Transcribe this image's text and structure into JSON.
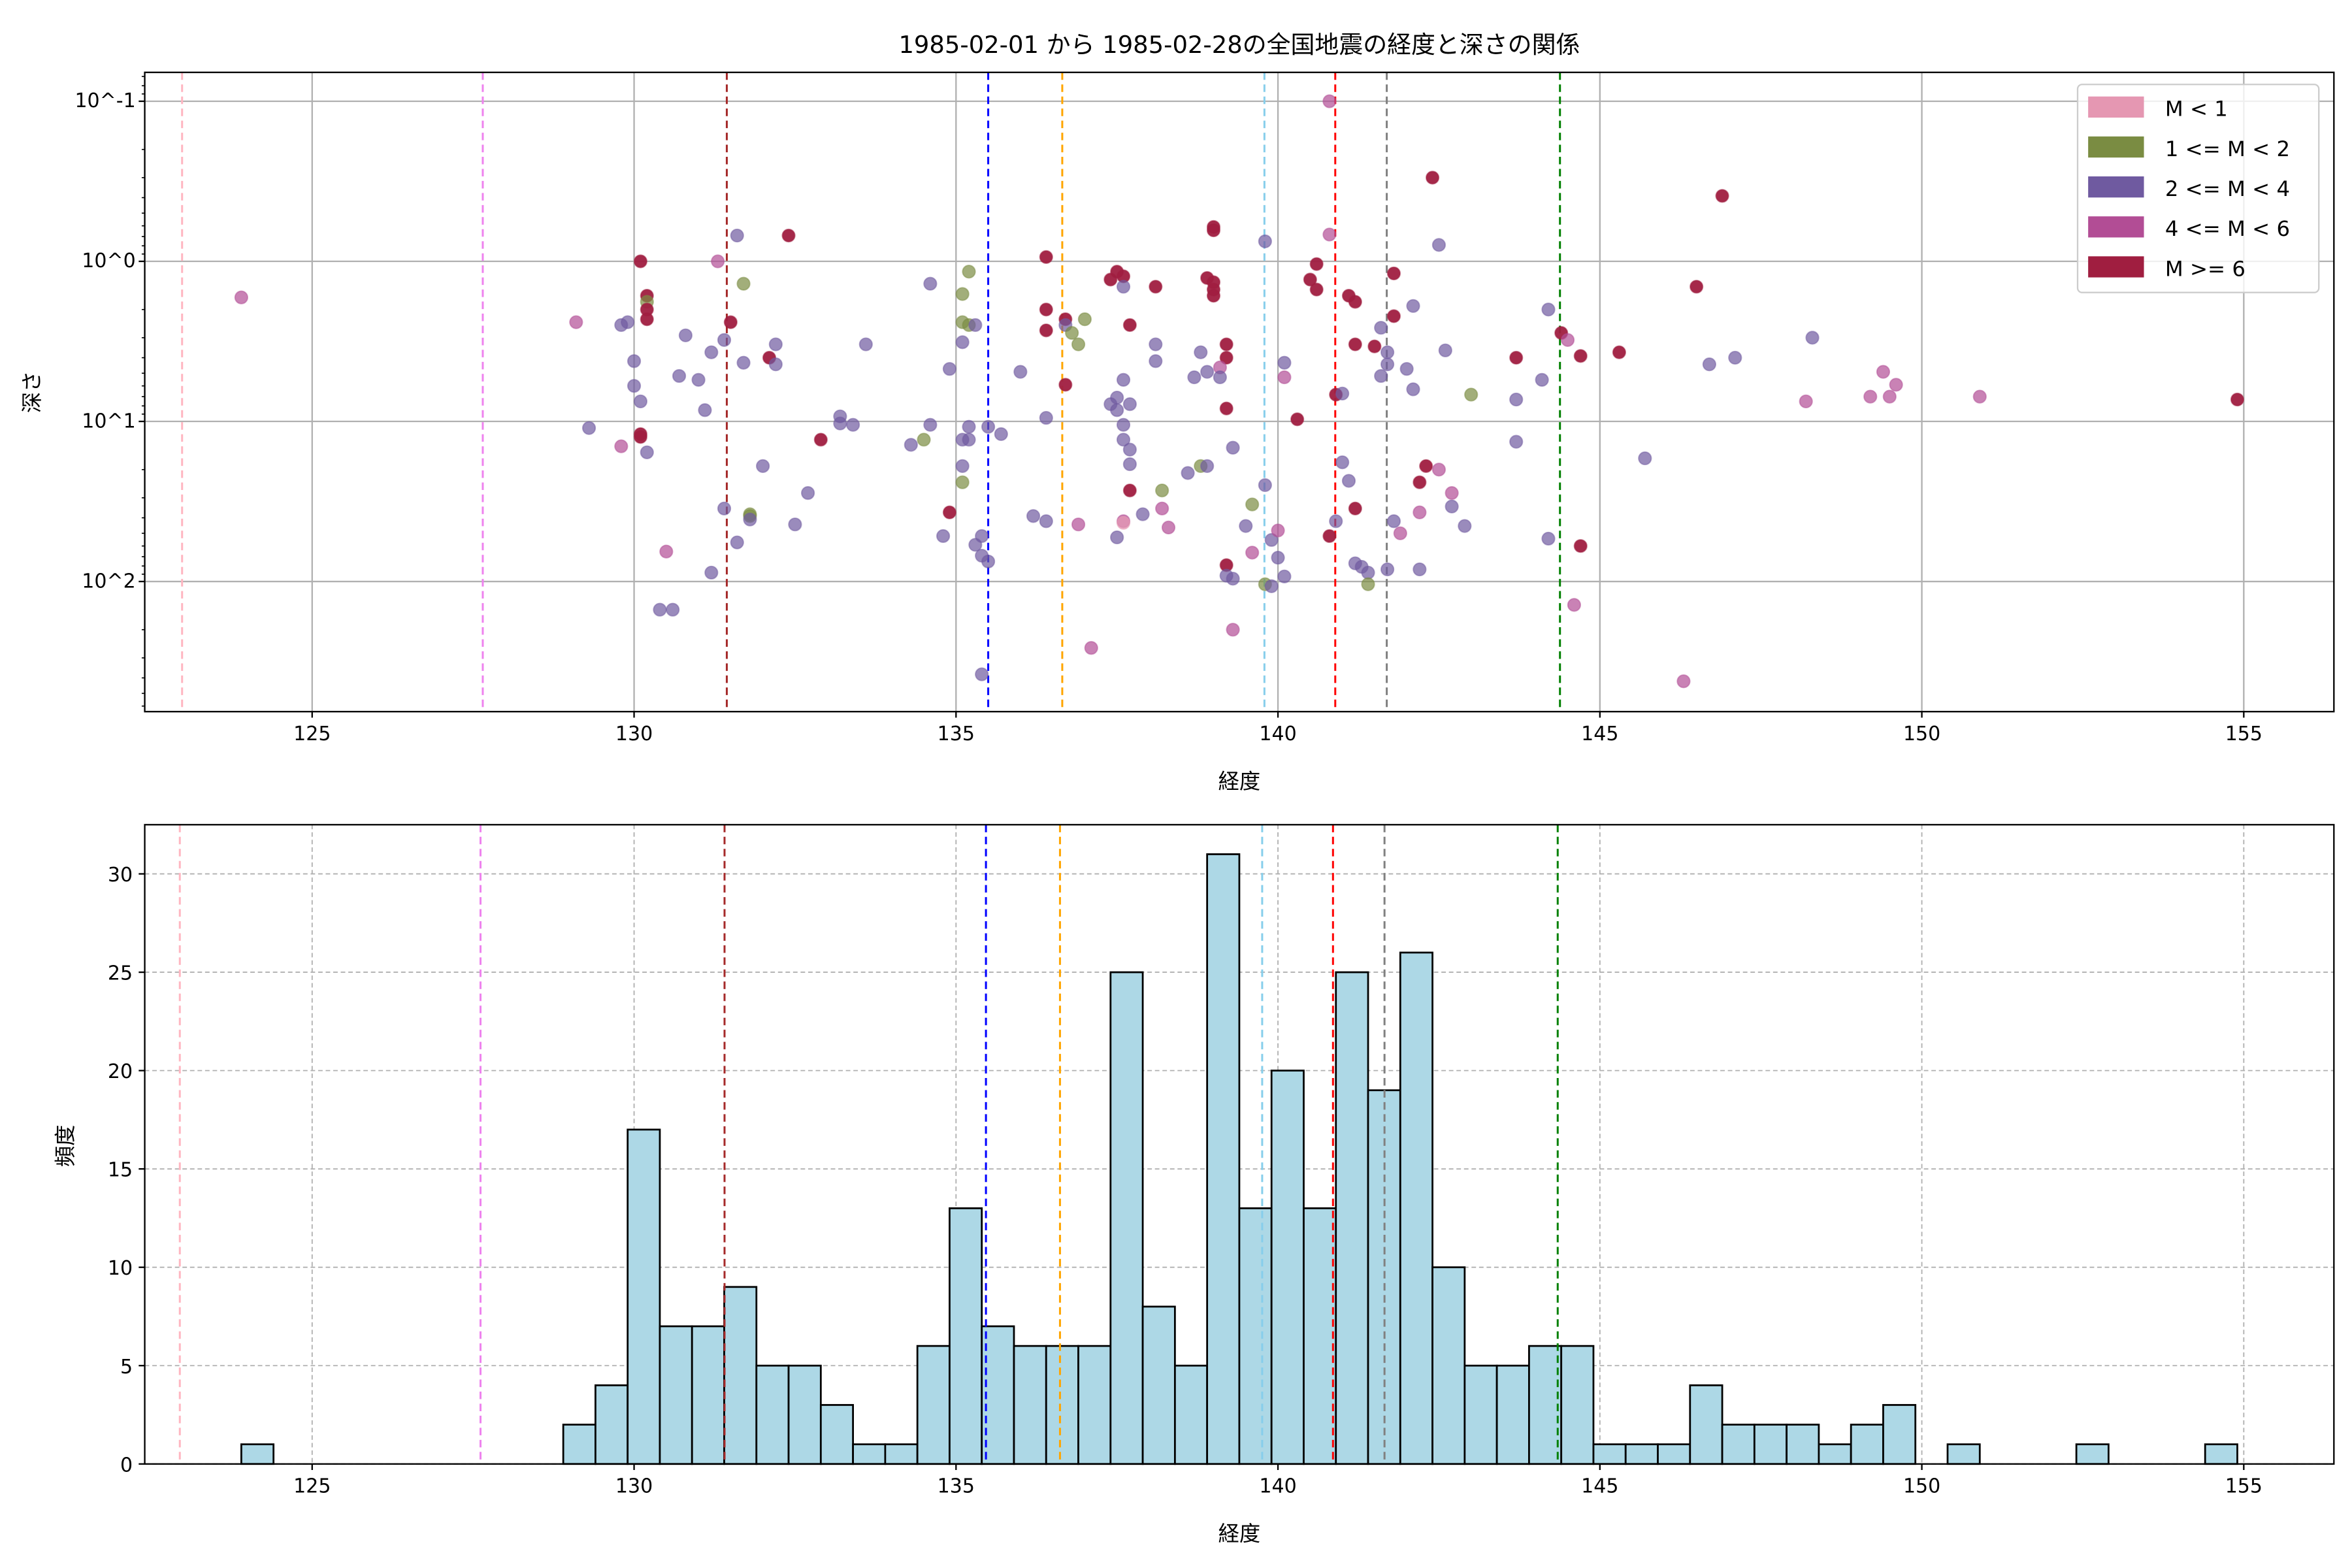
{
  "chart_data": [
    {
      "type": "scatter",
      "title": "1985-02-01 から 1985-02-28の全国地震の経度と深さの関係",
      "xlabel": "経度",
      "ylabel": "深さ",
      "xlim": [
        122.4,
        156.4
      ],
      "ylim": [
        0.066,
        650
      ],
      "yscale": "log",
      "yaxis_inverted": true,
      "xticks": [
        125,
        130,
        135,
        140,
        145,
        150,
        155
      ],
      "xtick_labels": [
        "125",
        "130",
        "135",
        "140",
        "145",
        "150",
        "155"
      ],
      "yticks": [
        0.1,
        1,
        10,
        100
      ],
      "ytick_labels": [
        "10^-1",
        "10^0",
        "10^1",
        "10^2"
      ],
      "grid": true,
      "legend_position": "top-right",
      "categories": [
        {
          "label": "M < 1",
          "color": "#e597b2"
        },
        {
          "label": "1 <= M < 2",
          "color": "#7a8c42"
        },
        {
          "label": "2 <= M < 4",
          "color": "#6f5aa0"
        },
        {
          "label": "4 <= M < 6",
          "color": "#b24d95"
        },
        {
          "label": "M >= 6",
          "color": "#a01e40"
        }
      ],
      "points_format": [
        "longitude",
        "depth",
        "category_index"
      ],
      "points": [
        [
          123.9,
          1.68,
          3
        ],
        [
          129.1,
          2.4,
          3
        ],
        [
          129.3,
          11,
          2
        ],
        [
          129.8,
          2.5,
          2
        ],
        [
          129.9,
          2.4,
          2
        ],
        [
          130.0,
          4.2,
          2
        ],
        [
          130.0,
          6.0,
          2
        ],
        [
          130.1,
          7.5,
          2
        ],
        [
          130.1,
          1.0,
          4
        ],
        [
          130.2,
          1.64,
          4
        ],
        [
          130.2,
          1.79,
          1
        ],
        [
          130.2,
          2.0,
          4
        ],
        [
          130.2,
          2.3,
          4
        ],
        [
          129.8,
          14.3,
          3
        ],
        [
          130.1,
          12,
          4
        ],
        [
          130.1,
          12.5,
          4
        ],
        [
          130.2,
          15.6,
          2
        ],
        [
          130.5,
          65,
          3
        ],
        [
          130.4,
          150,
          2
        ],
        [
          130.6,
          150,
          2
        ],
        [
          130.8,
          2.9,
          2
        ],
        [
          130.7,
          5.2,
          2
        ],
        [
          131.0,
          5.5,
          2
        ],
        [
          131.1,
          8.5,
          2
        ],
        [
          131.2,
          88,
          2
        ],
        [
          131.2,
          3.7,
          2
        ],
        [
          131.3,
          1.0,
          3
        ],
        [
          131.4,
          3.1,
          2
        ],
        [
          131.5,
          2.4,
          4
        ],
        [
          131.4,
          35,
          2
        ],
        [
          131.6,
          0.69,
          2
        ],
        [
          131.6,
          57,
          2
        ],
        [
          131.7,
          1.38,
          1
        ],
        [
          131.7,
          4.3,
          2
        ],
        [
          131.8,
          38,
          1
        ],
        [
          131.8,
          39,
          1
        ],
        [
          131.8,
          41,
          2
        ],
        [
          132.1,
          4.0,
          4
        ],
        [
          132.2,
          3.3,
          2
        ],
        [
          132.2,
          4.4,
          2
        ],
        [
          132.0,
          19,
          2
        ],
        [
          132.4,
          0.69,
          4
        ],
        [
          132.5,
          44,
          2
        ],
        [
          132.7,
          28,
          2
        ],
        [
          132.9,
          13,
          4
        ],
        [
          133.2,
          9.3,
          2
        ],
        [
          133.2,
          10.3,
          2
        ],
        [
          133.4,
          10.5,
          2
        ],
        [
          133.6,
          3.3,
          2
        ],
        [
          134.3,
          14,
          2
        ],
        [
          134.5,
          13,
          1
        ],
        [
          134.6,
          10.5,
          2
        ],
        [
          134.6,
          1.38,
          2
        ],
        [
          134.8,
          52,
          2
        ],
        [
          134.9,
          4.7,
          2
        ],
        [
          134.9,
          37,
          4
        ],
        [
          135.1,
          13,
          2
        ],
        [
          135.1,
          19,
          2
        ],
        [
          135.1,
          3.2,
          2
        ],
        [
          135.1,
          1.6,
          1
        ],
        [
          135.1,
          2.4,
          1
        ],
        [
          135.2,
          2.5,
          1
        ],
        [
          135.1,
          24,
          1
        ],
        [
          135.2,
          13,
          2
        ],
        [
          135.2,
          1.16,
          1
        ],
        [
          135.2,
          10.8,
          2
        ],
        [
          135.3,
          2.5,
          2
        ],
        [
          135.3,
          59,
          2
        ],
        [
          135.4,
          52,
          2
        ],
        [
          135.4,
          69,
          2
        ],
        [
          135.5,
          75,
          2
        ],
        [
          135.4,
          380,
          2
        ],
        [
          135.5,
          10.8,
          2
        ],
        [
          135.7,
          12,
          2
        ],
        [
          136.0,
          4.9,
          2
        ],
        [
          136.2,
          39,
          2
        ],
        [
          136.4,
          0.94,
          4
        ],
        [
          136.4,
          2.0,
          4
        ],
        [
          136.4,
          2.7,
          4
        ],
        [
          136.4,
          9.5,
          2
        ],
        [
          136.4,
          42,
          2
        ],
        [
          136.7,
          2.3,
          4
        ],
        [
          136.7,
          5.9,
          4
        ],
        [
          136.7,
          2.5,
          2
        ],
        [
          136.8,
          2.8,
          1
        ],
        [
          136.9,
          3.3,
          1
        ],
        [
          136.9,
          44,
          3
        ],
        [
          137.0,
          2.3,
          1
        ],
        [
          137.1,
          260,
          3
        ],
        [
          137.4,
          1.3,
          4
        ],
        [
          137.5,
          1.16,
          4
        ],
        [
          137.6,
          1.24,
          4
        ],
        [
          137.4,
          7.8,
          2
        ],
        [
          137.5,
          8.5,
          2
        ],
        [
          137.5,
          7.1,
          2
        ],
        [
          137.7,
          7.8,
          2
        ],
        [
          137.6,
          10.5,
          2
        ],
        [
          137.6,
          13,
          2
        ],
        [
          137.5,
          53,
          2
        ],
        [
          137.6,
          1.44,
          2
        ],
        [
          137.6,
          5.5,
          2
        ],
        [
          137.6,
          42,
          3
        ],
        [
          137.6,
          43,
          0
        ],
        [
          137.7,
          2.5,
          4
        ],
        [
          137.7,
          15,
          2
        ],
        [
          137.7,
          27,
          4
        ],
        [
          137.7,
          18.5,
          2
        ],
        [
          137.9,
          38,
          2
        ],
        [
          138.1,
          1.44,
          4
        ],
        [
          138.1,
          3.3,
          2
        ],
        [
          138.1,
          4.2,
          2
        ],
        [
          138.2,
          27,
          1
        ],
        [
          138.2,
          35,
          3
        ],
        [
          138.3,
          46,
          3
        ],
        [
          138.6,
          21,
          2
        ],
        [
          138.7,
          5.3,
          2
        ],
        [
          138.8,
          3.7,
          2
        ],
        [
          138.9,
          4.9,
          2
        ],
        [
          138.8,
          19,
          1
        ],
        [
          138.9,
          19,
          2
        ],
        [
          138.9,
          1.27,
          4
        ],
        [
          139.0,
          0.61,
          4
        ],
        [
          139.0,
          0.64,
          4
        ],
        [
          139.0,
          1.5,
          4
        ],
        [
          139.0,
          1.35,
          4
        ],
        [
          139.0,
          1.64,
          4
        ],
        [
          139.2,
          4.0,
          4
        ],
        [
          139.2,
          3.3,
          4
        ],
        [
          139.1,
          4.6,
          3
        ],
        [
          139.1,
          5.3,
          2
        ],
        [
          139.2,
          79,
          4
        ],
        [
          139.2,
          92,
          2
        ],
        [
          139.3,
          96,
          2
        ],
        [
          139.3,
          200,
          3
        ],
        [
          139.2,
          8.3,
          4
        ],
        [
          139.3,
          14.6,
          2
        ],
        [
          139.5,
          45,
          2
        ],
        [
          139.6,
          66,
          3
        ],
        [
          139.6,
          33,
          1
        ],
        [
          139.8,
          0.75,
          2
        ],
        [
          139.8,
          25,
          2
        ],
        [
          139.8,
          104,
          1
        ],
        [
          139.9,
          107,
          2
        ],
        [
          139.9,
          55,
          2
        ],
        [
          140.0,
          71,
          2
        ],
        [
          140.0,
          48,
          3
        ],
        [
          140.1,
          4.3,
          2
        ],
        [
          140.1,
          5.3,
          3
        ],
        [
          140.1,
          93,
          2
        ],
        [
          140.3,
          9.7,
          4
        ],
        [
          140.5,
          1.3,
          4
        ],
        [
          140.6,
          1.5,
          4
        ],
        [
          140.6,
          1.04,
          4
        ],
        [
          140.8,
          0.68,
          3
        ],
        [
          140.8,
          0.1,
          3
        ],
        [
          140.9,
          6.8,
          4
        ],
        [
          140.8,
          52,
          4
        ],
        [
          140.9,
          42,
          2
        ],
        [
          141.0,
          18,
          2
        ],
        [
          141.0,
          6.7,
          2
        ],
        [
          141.1,
          1.64,
          4
        ],
        [
          141.2,
          1.79,
          4
        ],
        [
          141.1,
          23.5,
          2
        ],
        [
          141.2,
          35,
          4
        ],
        [
          141.2,
          3.3,
          4
        ],
        [
          141.2,
          77,
          2
        ],
        [
          141.3,
          81,
          2
        ],
        [
          141.4,
          88,
          2
        ],
        [
          141.4,
          104,
          1
        ],
        [
          141.6,
          5.2,
          2
        ],
        [
          141.7,
          4.4,
          2
        ],
        [
          141.7,
          3.7,
          2
        ],
        [
          141.5,
          3.4,
          4
        ],
        [
          141.6,
          2.6,
          2
        ],
        [
          141.8,
          2.2,
          4
        ],
        [
          141.8,
          1.19,
          4
        ],
        [
          141.7,
          84,
          2
        ],
        [
          141.8,
          42,
          2
        ],
        [
          141.9,
          50,
          3
        ],
        [
          142.0,
          4.7,
          2
        ],
        [
          142.1,
          6.3,
          2
        ],
        [
          142.1,
          1.9,
          2
        ],
        [
          142.2,
          37,
          3
        ],
        [
          142.2,
          84,
          2
        ],
        [
          142.2,
          24,
          4
        ],
        [
          142.3,
          19,
          4
        ],
        [
          142.4,
          0.3,
          4
        ],
        [
          142.5,
          20,
          3
        ],
        [
          142.5,
          0.79,
          2
        ],
        [
          142.6,
          3.6,
          2
        ],
        [
          142.7,
          34,
          2
        ],
        [
          142.7,
          28,
          3
        ],
        [
          143.0,
          6.8,
          1
        ],
        [
          142.9,
          45,
          2
        ],
        [
          143.7,
          7.3,
          2
        ],
        [
          143.7,
          13.4,
          2
        ],
        [
          143.7,
          4.0,
          4
        ],
        [
          144.1,
          5.5,
          2
        ],
        [
          144.2,
          54,
          2
        ],
        [
          144.2,
          2.0,
          2
        ],
        [
          144.4,
          2.8,
          4
        ],
        [
          144.5,
          3.1,
          3
        ],
        [
          144.7,
          3.9,
          4
        ],
        [
          144.6,
          140,
          3
        ],
        [
          144.7,
          60,
          4
        ],
        [
          145.3,
          3.7,
          4
        ],
        [
          145.7,
          17,
          2
        ],
        [
          146.3,
          420,
          3
        ],
        [
          146.5,
          1.44,
          4
        ],
        [
          146.7,
          4.4,
          2
        ],
        [
          147.1,
          4.0,
          2
        ],
        [
          146.9,
          0.39,
          4
        ],
        [
          148.2,
          7.5,
          3
        ],
        [
          148.3,
          3.0,
          2
        ],
        [
          149.2,
          7.0,
          3
        ],
        [
          149.4,
          4.9,
          3
        ],
        [
          149.6,
          5.9,
          3
        ],
        [
          149.5,
          7.0,
          3
        ],
        [
          150.9,
          7.0,
          3
        ],
        [
          154.9,
          7.3,
          4
        ]
      ]
    },
    {
      "type": "bar",
      "subtype": "histogram",
      "xlabel": "経度",
      "ylabel": "頻度",
      "xlim": [
        122.4,
        156.4
      ],
      "ylim": [
        0,
        32.5
      ],
      "xticks": [
        125,
        130,
        135,
        140,
        145,
        150,
        155
      ],
      "xtick_labels": [
        "125",
        "130",
        "135",
        "140",
        "145",
        "150",
        "155"
      ],
      "yticks": [
        0,
        5,
        10,
        15,
        20,
        25,
        30
      ],
      "ytick_labels": [
        "0",
        "5",
        "10",
        "15",
        "20",
        "25",
        "30"
      ],
      "grid": true,
      "bar_color": "#add8e6",
      "bin_start": 123.9,
      "bin_width": 0.5,
      "counts": [
        1,
        0,
        0,
        0,
        0,
        0,
        0,
        0,
        0,
        0,
        2,
        4,
        17,
        7,
        7,
        9,
        5,
        5,
        3,
        1,
        1,
        6,
        13,
        7,
        6,
        6,
        6,
        25,
        8,
        5,
        31,
        13,
        20,
        13,
        25,
        19,
        26,
        10,
        5,
        5,
        6,
        6,
        1,
        1,
        1,
        4,
        2,
        2,
        2,
        1,
        2,
        3,
        0,
        1,
        0,
        0,
        0,
        1,
        0,
        0,
        0,
        1
      ]
    }
  ],
  "reference_lines": [
    {
      "longitude": 122.98,
      "color": "#ffb6c1"
    },
    {
      "longitude": 127.65,
      "color": "#ee82ee"
    },
    {
      "longitude": 131.44,
      "color": "#a52a2a"
    },
    {
      "longitude": 135.5,
      "color": "#0000ff"
    },
    {
      "longitude": 136.65,
      "color": "#ffa500"
    },
    {
      "longitude": 139.79,
      "color": "#87ceeb"
    },
    {
      "longitude": 140.89,
      "color": "#ff0000"
    },
    {
      "longitude": 141.69,
      "color": "#808080"
    },
    {
      "longitude": 144.38,
      "color": "#008000"
    }
  ]
}
